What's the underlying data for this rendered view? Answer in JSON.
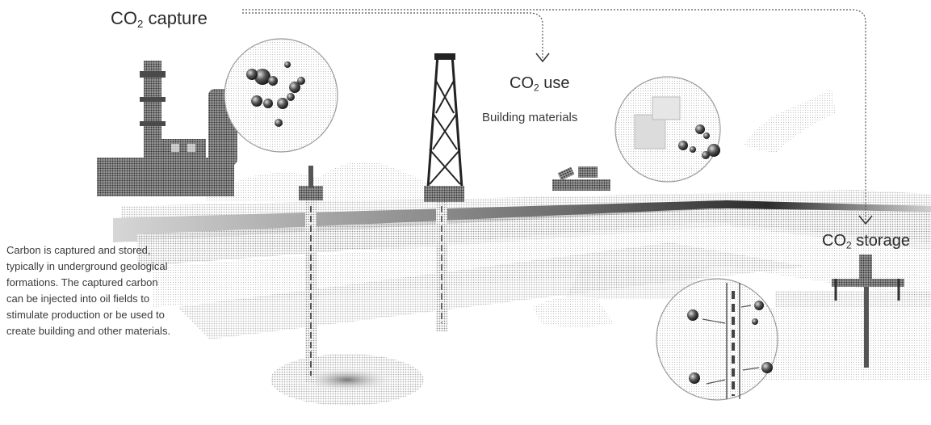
{
  "capture": {
    "prefix": "CO",
    "subscript": "2",
    "label": "capture"
  },
  "use": {
    "prefix": "CO",
    "subscript": "2",
    "label": "use",
    "subtitle": "Building materials"
  },
  "storage": {
    "prefix": "CO",
    "subscript": "2",
    "label": "storage"
  },
  "description": "Carbon is captured and stored,\ntypically in underground geological\nformations. The captured carbon\ncan be injected into oil fields to\nstimulate production or be used to\ncreate building and other materials.",
  "colors": {
    "ink": "#333333",
    "ground_dark": "#3c3c3c",
    "ground_mid": "#9a9a9a",
    "ground_light": "#d9d9d9",
    "bubble_stroke": "#9a9a9a"
  },
  "icons": [
    "factory-icon",
    "drilling-rig-icon",
    "oil-well-icon",
    "brick-stack-icon",
    "storage-well-icon",
    "co2-molecule-icon"
  ]
}
